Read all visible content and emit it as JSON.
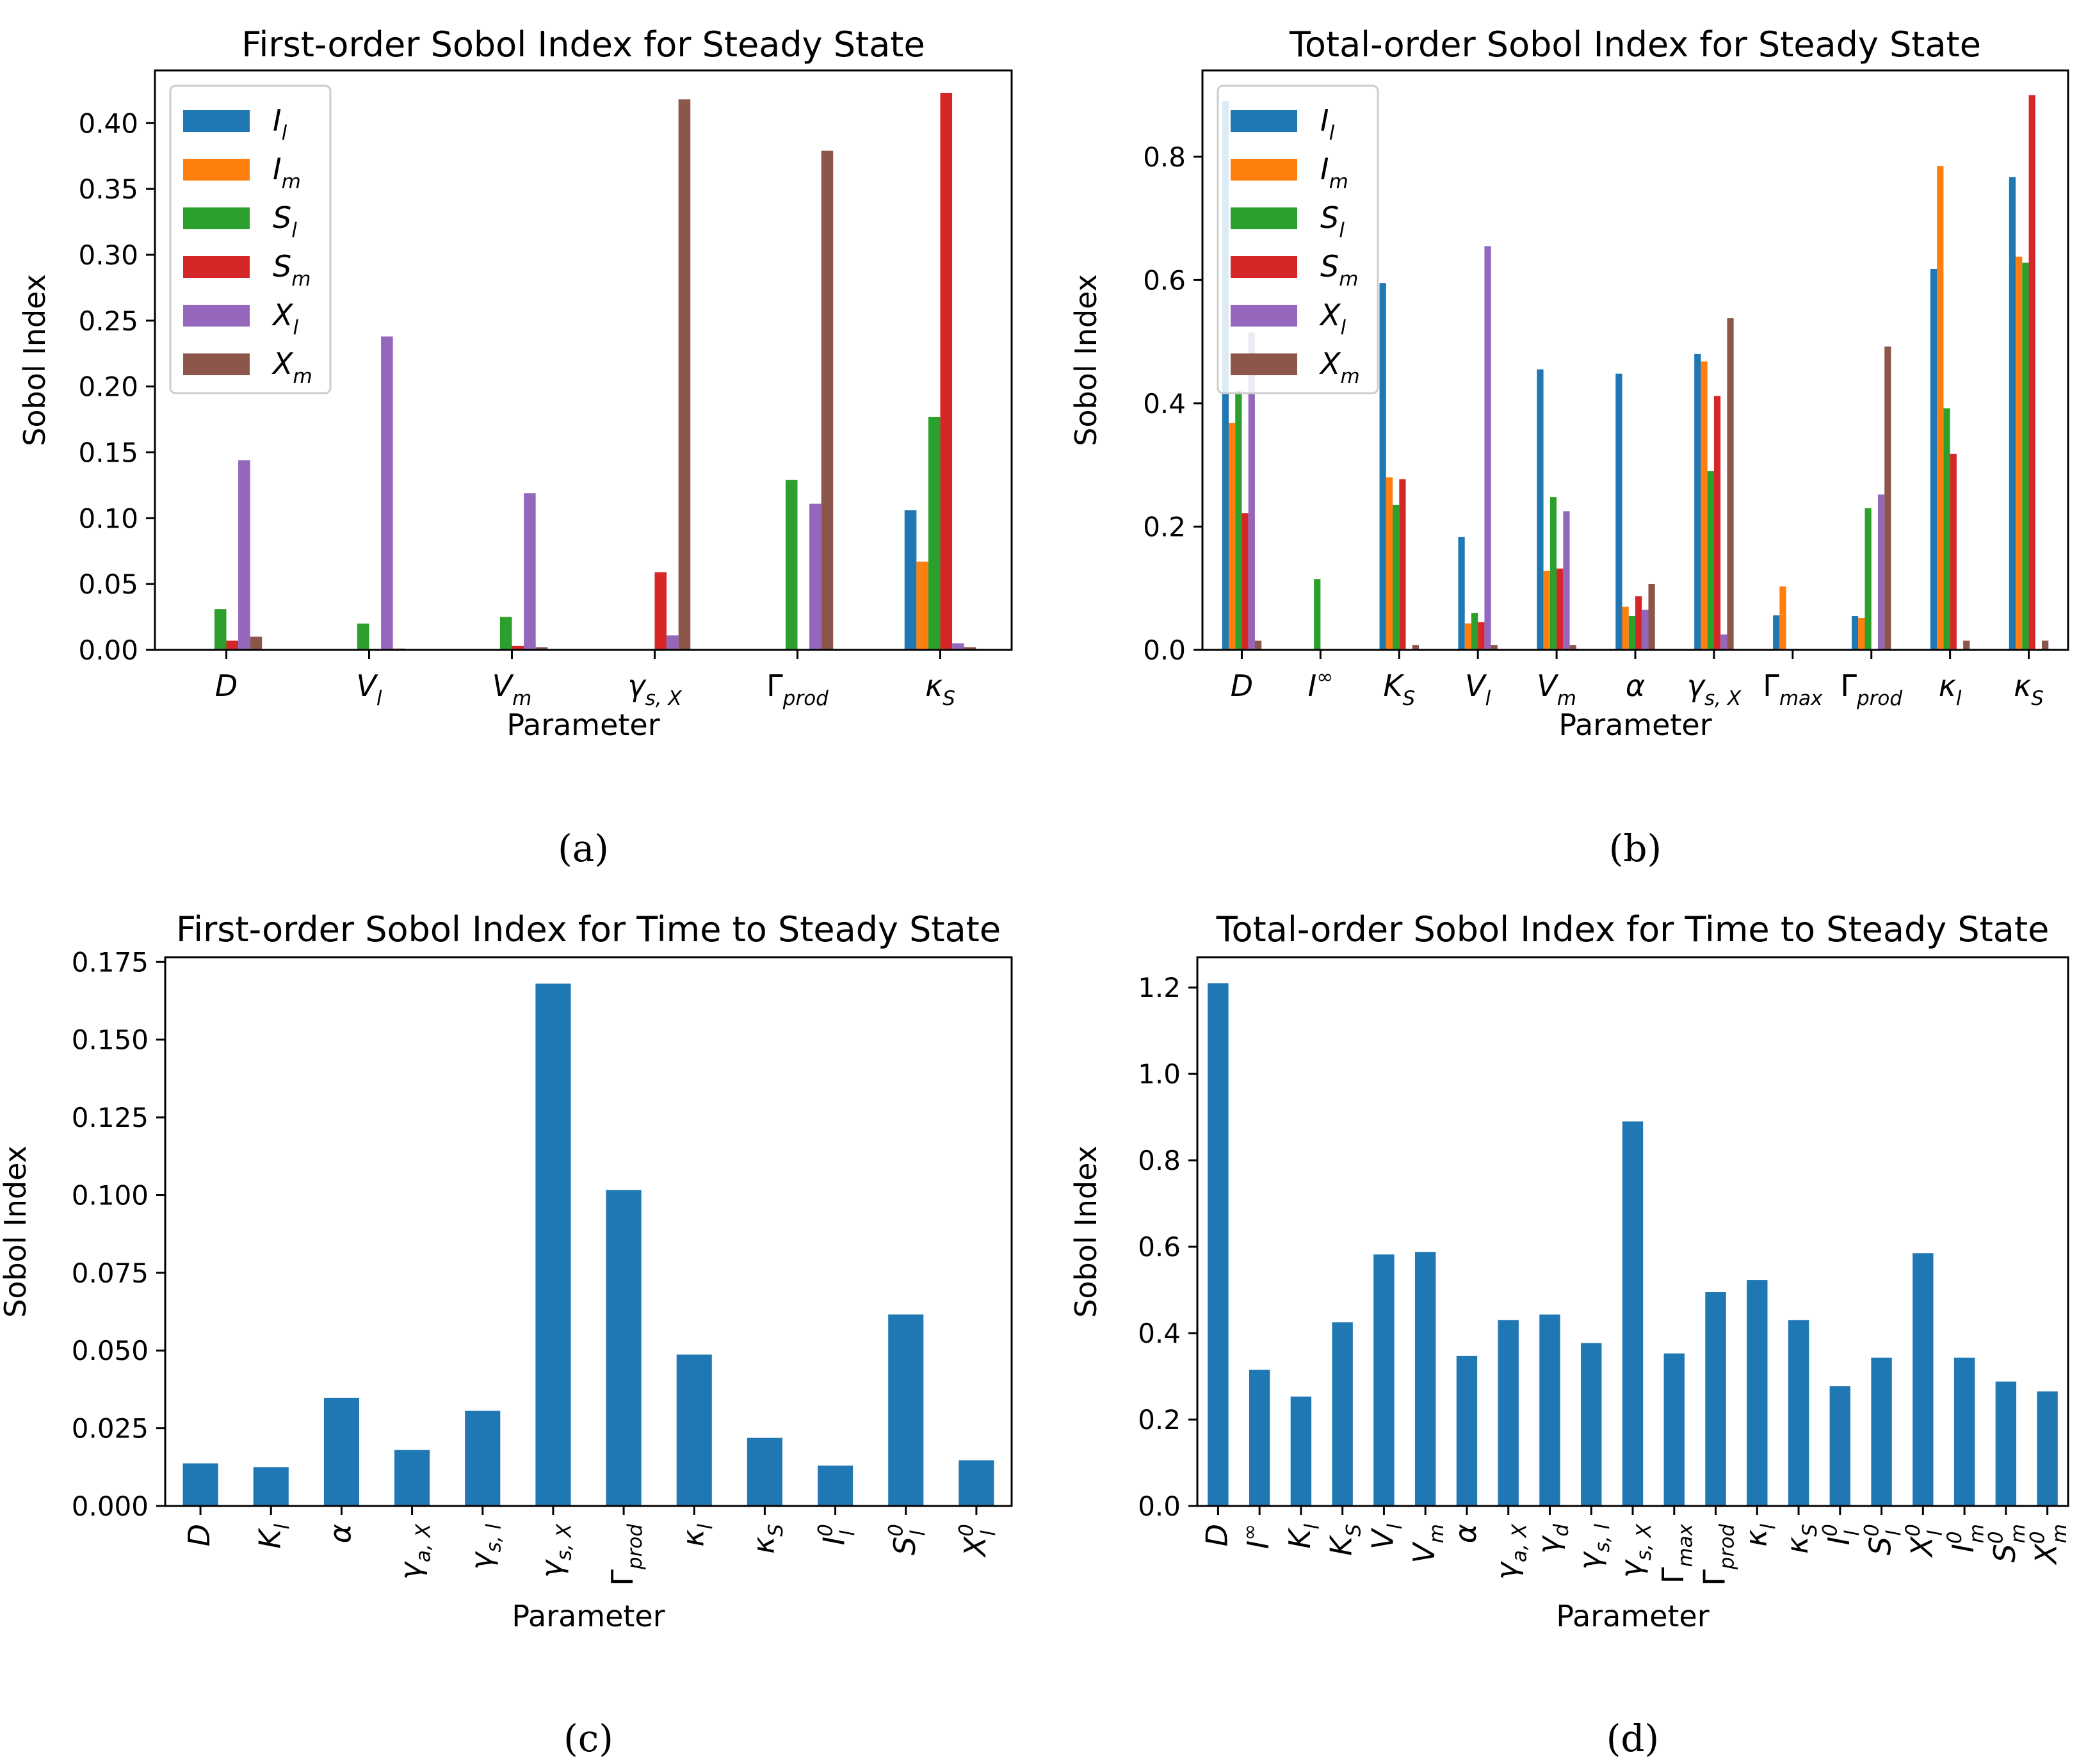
{
  "chart_data": [
    {
      "type": "bar",
      "title": "First-order Sobol Index for Steady State",
      "xlabel": "Parameter",
      "ylabel": "Sobol Index",
      "caption": "(a)",
      "ylim": [
        0,
        0.44
      ],
      "yticks": [
        0.0,
        0.05,
        0.1,
        0.15,
        0.2,
        0.25,
        0.3,
        0.35,
        0.4
      ],
      "ytick_labels": [
        "0.00",
        "0.05",
        "0.10",
        "0.15",
        "0.20",
        "0.25",
        "0.30",
        "0.35",
        "0.40"
      ],
      "categories": [
        {
          "base": "D",
          "sub": ""
        },
        {
          "base": "V",
          "sub": "l"
        },
        {
          "base": "V",
          "sub": "m"
        },
        {
          "base": "γ",
          "sub": "s, X"
        },
        {
          "base": "Γ",
          "sub": "prod"
        },
        {
          "base": "κ",
          "sub": "S"
        }
      ],
      "legend_position": "upper-left",
      "series": [
        {
          "name": "I",
          "sub": "l",
          "color": "#1f77b4",
          "values": [
            0.0,
            0.0,
            0.0,
            0.0,
            0.0,
            0.106
          ]
        },
        {
          "name": "I",
          "sub": "m",
          "color": "#ff7f0e",
          "values": [
            0.0,
            0.0,
            0.0,
            0.0,
            0.0,
            0.067
          ]
        },
        {
          "name": "S",
          "sub": "l",
          "color": "#2ca02c",
          "values": [
            0.031,
            0.02,
            0.025,
            0.0,
            0.129,
            0.177
          ]
        },
        {
          "name": "S",
          "sub": "m",
          "color": "#d62728",
          "values": [
            0.007,
            0.0,
            0.003,
            0.059,
            0.0,
            0.423
          ]
        },
        {
          "name": "X",
          "sub": "l",
          "color": "#9467bd",
          "values": [
            0.144,
            0.238,
            0.119,
            0.011,
            0.111,
            0.005
          ]
        },
        {
          "name": "X",
          "sub": "m",
          "color": "#8c564b",
          "values": [
            0.01,
            0.001,
            0.002,
            0.418,
            0.379,
            0.002
          ]
        }
      ]
    },
    {
      "type": "bar",
      "title": "Total-order Sobol Index for Steady State",
      "xlabel": "Parameter",
      "ylabel": "Sobol Index",
      "caption": "(b)",
      "ylim": [
        0,
        0.94
      ],
      "yticks": [
        0.0,
        0.2,
        0.4,
        0.6,
        0.8
      ],
      "ytick_labels": [
        "0.0",
        "0.2",
        "0.4",
        "0.6",
        "0.8"
      ],
      "categories": [
        {
          "base": "D",
          "sub": ""
        },
        {
          "base": "I",
          "sub": "",
          "sup": "∞"
        },
        {
          "base": "K",
          "sub": "S"
        },
        {
          "base": "V",
          "sub": "l"
        },
        {
          "base": "V",
          "sub": "m"
        },
        {
          "base": "α",
          "sub": ""
        },
        {
          "base": "γ",
          "sub": "s, X"
        },
        {
          "base": "Γ",
          "sub": "max"
        },
        {
          "base": "Γ",
          "sub": "prod"
        },
        {
          "base": "κ",
          "sub": "l"
        },
        {
          "base": "κ",
          "sub": "S"
        }
      ],
      "legend_position": "upper-left",
      "series": [
        {
          "name": "I",
          "sub": "l",
          "color": "#1f77b4",
          "values": [
            0.89,
            0.0,
            0.595,
            0.183,
            0.455,
            0.448,
            0.48,
            0.056,
            0.055,
            0.618,
            0.767
          ]
        },
        {
          "name": "I",
          "sub": "m",
          "color": "#ff7f0e",
          "values": [
            0.368,
            0.0,
            0.28,
            0.043,
            0.128,
            0.07,
            0.468,
            0.103,
            0.052,
            0.785,
            0.638
          ]
        },
        {
          "name": "S",
          "sub": "l",
          "color": "#2ca02c",
          "values": [
            0.42,
            0.115,
            0.235,
            0.06,
            0.248,
            0.055,
            0.29,
            0.0,
            0.23,
            0.392,
            0.628
          ]
        },
        {
          "name": "S",
          "sub": "m",
          "color": "#d62728",
          "values": [
            0.222,
            0.0,
            0.277,
            0.045,
            0.132,
            0.087,
            0.412,
            0.0,
            0.0,
            0.318,
            0.9
          ]
        },
        {
          "name": "X",
          "sub": "l",
          "color": "#9467bd",
          "values": [
            0.515,
            0.0,
            0.0,
            0.655,
            0.225,
            0.065,
            0.025,
            0.0,
            0.252,
            0.0,
            0.0
          ]
        },
        {
          "name": "X",
          "sub": "m",
          "color": "#8c564b",
          "values": [
            0.015,
            0.0,
            0.008,
            0.008,
            0.008,
            0.107,
            0.538,
            0.0,
            0.492,
            0.015,
            0.015
          ]
        }
      ]
    },
    {
      "type": "bar",
      "title": "First-order Sobol Index for Time to Steady State",
      "xlabel": "Parameter",
      "ylabel": "Sobol Index",
      "caption": "(c)",
      "ylim": [
        0,
        0.1765
      ],
      "yticks": [
        0.0,
        0.025,
        0.05,
        0.075,
        0.1,
        0.125,
        0.15,
        0.175
      ],
      "ytick_labels": [
        "0.000",
        "0.025",
        "0.050",
        "0.075",
        "0.100",
        "0.125",
        "0.150",
        "0.175"
      ],
      "categories": [
        {
          "base": "D",
          "sub": ""
        },
        {
          "base": "K",
          "sub": "l"
        },
        {
          "base": "α",
          "sub": ""
        },
        {
          "base": "γ",
          "sub": "a, X"
        },
        {
          "base": "γ",
          "sub": "s, l"
        },
        {
          "base": "γ",
          "sub": "s, X"
        },
        {
          "base": "Γ",
          "sub": "prod"
        },
        {
          "base": "κ",
          "sub": "l"
        },
        {
          "base": "κ",
          "sub": "S"
        },
        {
          "base": "I",
          "sub": "l",
          "sup": "0"
        },
        {
          "base": "S",
          "sub": "l",
          "sup": "0"
        },
        {
          "base": "X",
          "sub": "l",
          "sup": "0"
        }
      ],
      "series": [
        {
          "name": "Sobol Index",
          "color": "#1f77b4",
          "values": [
            0.0137,
            0.0125,
            0.0348,
            0.018,
            0.0306,
            0.168,
            0.1016,
            0.0487,
            0.0219,
            0.013,
            0.0616,
            0.0147
          ]
        }
      ]
    },
    {
      "type": "bar",
      "title": "Total-order Sobol Index for Time to Steady State",
      "xlabel": "Parameter",
      "ylabel": "Sobol Index",
      "caption": "(d)",
      "ylim": [
        0,
        1.27
      ],
      "yticks": [
        0.0,
        0.2,
        0.4,
        0.6,
        0.8,
        1.0,
        1.2
      ],
      "ytick_labels": [
        "0.0",
        "0.2",
        "0.4",
        "0.6",
        "0.8",
        "1.0",
        "1.2"
      ],
      "categories": [
        {
          "base": "D",
          "sub": ""
        },
        {
          "base": "I",
          "sub": "",
          "sup": "∞"
        },
        {
          "base": "K",
          "sub": "l"
        },
        {
          "base": "K",
          "sub": "S"
        },
        {
          "base": "V",
          "sub": "l"
        },
        {
          "base": "V",
          "sub": "m"
        },
        {
          "base": "α",
          "sub": ""
        },
        {
          "base": "γ",
          "sub": "a, X"
        },
        {
          "base": "γ",
          "sub": "d"
        },
        {
          "base": "γ",
          "sub": "s, l"
        },
        {
          "base": "γ",
          "sub": "s, X"
        },
        {
          "base": "Γ",
          "sub": "max"
        },
        {
          "base": "Γ",
          "sub": "prod"
        },
        {
          "base": "κ",
          "sub": "l"
        },
        {
          "base": "κ",
          "sub": "S"
        },
        {
          "base": "I",
          "sub": "l",
          "sup": "0"
        },
        {
          "base": "S",
          "sub": "l",
          "sup": "0"
        },
        {
          "base": "X",
          "sub": "l",
          "sup": "0"
        },
        {
          "base": "I",
          "sub": "m",
          "sup": "0"
        },
        {
          "base": "S",
          "sub": "m",
          "sup": "0"
        },
        {
          "base": "X",
          "sub": "m",
          "sup": "0"
        }
      ],
      "series": [
        {
          "name": "Sobol Index",
          "color": "#1f77b4",
          "values": [
            1.21,
            0.315,
            0.253,
            0.425,
            0.582,
            0.588,
            0.347,
            0.43,
            0.443,
            0.377,
            0.89,
            0.353,
            0.495,
            0.523,
            0.43,
            0.277,
            0.343,
            0.585,
            0.343,
            0.288,
            0.265
          ]
        }
      ]
    }
  ]
}
